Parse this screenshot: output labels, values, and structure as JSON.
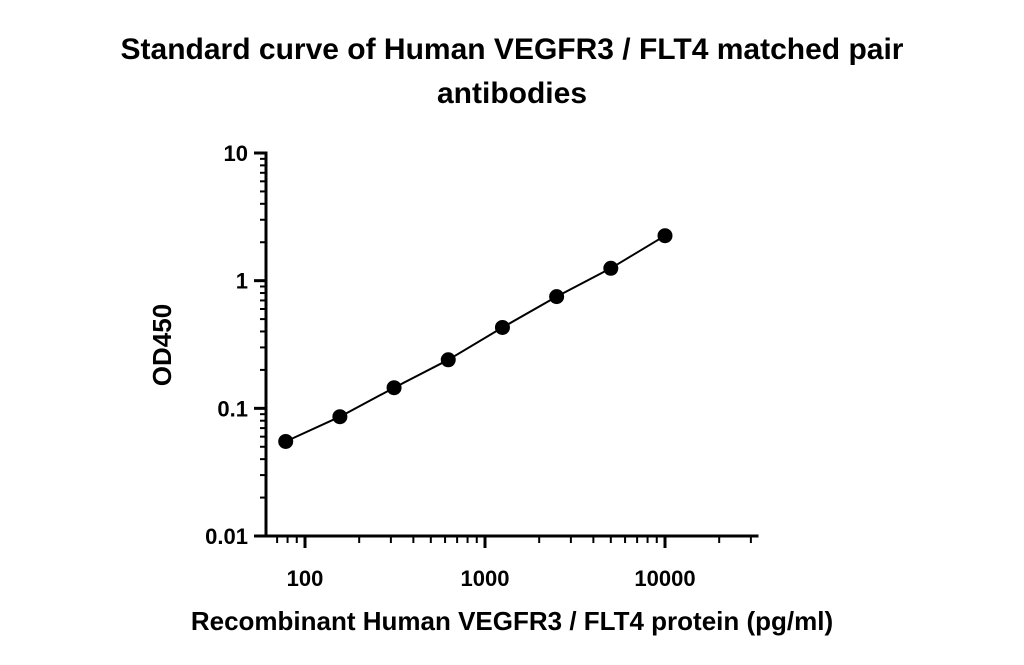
{
  "chart_data": {
    "type": "scatter",
    "title_lines": [
      "Standard curve of Human VEGFR3 / FLT4 matched pair",
      "antibodies"
    ],
    "xlabel": "Recombinant Human VEGFR3 / FLT4 protein (pg/ml)",
    "ylabel": "OD450",
    "x_scale": "log",
    "y_scale": "log",
    "xlim": [
      65,
      30000
    ],
    "ylim": [
      0.01,
      10
    ],
    "x_ticks": [
      {
        "value": 100,
        "label": "100"
      },
      {
        "value": 1000,
        "label": "1000"
      },
      {
        "value": 10000,
        "label": "10000"
      }
    ],
    "y_ticks": [
      {
        "value": 0.01,
        "label": "0.01"
      },
      {
        "value": 0.1,
        "label": "0.1"
      },
      {
        "value": 1,
        "label": "1"
      },
      {
        "value": 10,
        "label": "10"
      }
    ],
    "grid": false,
    "legend": "none",
    "series": [
      {
        "x": [
          78.125,
          156.25,
          312.5,
          625,
          1250,
          2500,
          5000,
          10000
        ],
        "y": [
          0.055,
          0.086,
          0.145,
          0.24,
          0.43,
          0.75,
          1.25,
          2.25
        ],
        "marker": "filled-circle",
        "fit_line": true,
        "color": "#000000"
      }
    ]
  }
}
